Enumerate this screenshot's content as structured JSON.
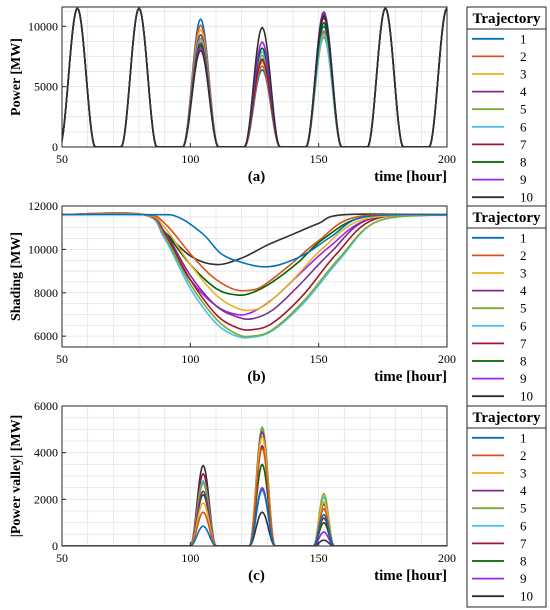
{
  "colors": [
    "#0072BD",
    "#D95319",
    "#EDB120",
    "#7E2F8E",
    "#77AC30",
    "#4DBEEE",
    "#A2142F",
    "#006400",
    "#A020F0",
    "#303030"
  ],
  "chart_data": [
    {
      "type": "line",
      "panel_label": "(a)",
      "xlabel": "time [hour]",
      "ylabel": "Power [MW]",
      "xlim": [
        50,
        200
      ],
      "ylim": [
        0,
        11600
      ],
      "xticks": [
        "50",
        "100",
        "150",
        "200"
      ],
      "xtick_values": [
        50,
        100,
        150,
        200
      ],
      "yticks": [
        "0",
        "5000",
        "10000"
      ],
      "ytick_values": [
        0,
        5000,
        10000
      ],
      "grid": true,
      "legend": {
        "title": "Trajectory",
        "entries": [
          "1",
          "2",
          "3",
          "4",
          "5",
          "6",
          "7",
          "8",
          "9",
          "10"
        ],
        "placement": "right"
      },
      "common_peak": 11500,
      "day_peaks": [
        {
          "center": 56,
          "values": [
            11500,
            11500,
            11500,
            11500,
            11500,
            11500,
            11500,
            11500,
            11500,
            11500
          ]
        },
        {
          "center": 80,
          "values": [
            11500,
            11500,
            11500,
            11500,
            11500,
            11500,
            11500,
            11500,
            11500,
            11500
          ]
        },
        {
          "center": 104,
          "values": [
            10600,
            10100,
            9700,
            9300,
            9000,
            8800,
            8600,
            8400,
            8200,
            8000
          ]
        },
        {
          "center": 128,
          "values": [
            6400,
            6700,
            7000,
            7300,
            7600,
            7900,
            7200,
            8200,
            8700,
            9900
          ]
        },
        {
          "center": 152,
          "values": [
            10000,
            9600,
            9300,
            11200,
            9100,
            9400,
            10700,
            10300,
            11000,
            10900
          ]
        },
        {
          "center": 176,
          "values": [
            11500,
            11500,
            11500,
            11500,
            11500,
            11500,
            11500,
            11500,
            11500,
            11500
          ]
        },
        {
          "center": 200,
          "values": [
            11500,
            11500,
            11500,
            11500,
            11500,
            11500,
            11500,
            11500,
            11500,
            11500
          ]
        }
      ],
      "half_width_hours": 7
    },
    {
      "type": "line",
      "panel_label": "(b)",
      "xlabel": "time [hour]",
      "ylabel": "Shading [MW]",
      "xlim": [
        50,
        200
      ],
      "ylim": [
        5500,
        12000
      ],
      "xticks": [
        "50",
        "100",
        "150",
        "200"
      ],
      "xtick_values": [
        50,
        100,
        150,
        200
      ],
      "yticks": [
        "6000",
        "8000",
        "10000",
        "12000"
      ],
      "ytick_values": [
        6000,
        8000,
        10000,
        12000
      ],
      "grid": true,
      "legend": {
        "title": "Trajectory",
        "entries": [
          "1",
          "2",
          "3",
          "4",
          "5",
          "6",
          "7",
          "8",
          "9",
          "10"
        ],
        "placement": "right"
      },
      "baseline": 11600,
      "series": [
        {
          "name": "1",
          "x": [
            50,
            85,
            95,
            105,
            112,
            120,
            128,
            135,
            145,
            155,
            168,
            200
          ],
          "y": [
            11600,
            11600,
            11500,
            10700,
            9800,
            9400,
            9200,
            9300,
            9800,
            10600,
            11500,
            11600
          ]
        },
        {
          "name": "2",
          "x": [
            50,
            82,
            90,
            100,
            108,
            116,
            122,
            128,
            138,
            150,
            165,
            200
          ],
          "y": [
            11600,
            11600,
            11200,
            9800,
            8800,
            8200,
            8100,
            8300,
            9200,
            10400,
            11500,
            11600
          ]
        },
        {
          "name": "3",
          "x": [
            50,
            82,
            90,
            100,
            110,
            118,
            124,
            130,
            140,
            152,
            168,
            200
          ],
          "y": [
            11600,
            11600,
            11000,
            9300,
            7900,
            7300,
            7200,
            7500,
            8600,
            10100,
            11400,
            11600
          ]
        },
        {
          "name": "4",
          "x": [
            50,
            82,
            90,
            100,
            110,
            118,
            124,
            132,
            142,
            155,
            170,
            200
          ],
          "y": [
            11600,
            11600,
            10800,
            8800,
            7400,
            6900,
            6800,
            7200,
            8300,
            9900,
            11400,
            11600
          ]
        },
        {
          "name": "5",
          "x": [
            50,
            82,
            90,
            100,
            110,
            118,
            124,
            132,
            144,
            158,
            173,
            200
          ],
          "y": [
            11600,
            11600,
            10600,
            8400,
            6800,
            6100,
            6000,
            6300,
            7600,
            9600,
            11300,
            11600
          ]
        },
        {
          "name": "6",
          "x": [
            50,
            82,
            90,
            100,
            110,
            118,
            124,
            132,
            144,
            158,
            173,
            200
          ],
          "y": [
            11600,
            11600,
            10500,
            8200,
            6600,
            6000,
            5950,
            6250,
            7500,
            9500,
            11300,
            11600
          ]
        },
        {
          "name": "7",
          "x": [
            50,
            82,
            90,
            100,
            110,
            118,
            124,
            132,
            144,
            157,
            172,
            200
          ],
          "y": [
            11600,
            11600,
            10700,
            8600,
            7000,
            6400,
            6300,
            6600,
            7900,
            9800,
            11400,
            11600
          ]
        },
        {
          "name": "8",
          "x": [
            50,
            82,
            90,
            100,
            110,
            118,
            124,
            132,
            142,
            152,
            168,
            200
          ],
          "y": [
            11600,
            11600,
            10800,
            9300,
            8200,
            7900,
            8000,
            8500,
            9400,
            10500,
            11500,
            11600
          ]
        },
        {
          "name": "9",
          "x": [
            50,
            82,
            90,
            100,
            110,
            118,
            124,
            132,
            142,
            154,
            170,
            200
          ],
          "y": [
            11600,
            11600,
            10500,
            8600,
            7400,
            7000,
            7100,
            7700,
            8800,
            10100,
            11400,
            11600
          ]
        },
        {
          "name": "10",
          "x": [
            50,
            82,
            90,
            100,
            110,
            120,
            130,
            140,
            150,
            160,
            200
          ],
          "y": [
            11600,
            11600,
            10800,
            9700,
            9300,
            9600,
            10200,
            10700,
            11200,
            11600,
            11600
          ]
        }
      ]
    },
    {
      "type": "line",
      "panel_label": "(c)",
      "xlabel": "time [hour]",
      "ylabel": "|Power valley| [MW]",
      "xlim": [
        50,
        200
      ],
      "ylim": [
        0,
        6000
      ],
      "xticks": [
        "50",
        "100",
        "150",
        "200"
      ],
      "xtick_values": [
        50,
        100,
        150,
        200
      ],
      "yticks": [
        "0",
        "2000",
        "4000",
        "6000"
      ],
      "ytick_values": [
        0,
        2000,
        4000,
        6000
      ],
      "grid": true,
      "legend": {
        "title": "Trajectory",
        "entries": [
          "1",
          "2",
          "3",
          "4",
          "5",
          "6",
          "7",
          "8",
          "9",
          "10"
        ],
        "placement": "right"
      },
      "bumps": [
        {
          "center": 105,
          "half_width_hours": 5,
          "values": [
            850,
            1450,
            1850,
            2350,
            2700,
            2800,
            3100,
            2200,
            2700,
            3450
          ]
        },
        {
          "center": 128,
          "half_width_hours": 5,
          "values": [
            2400,
            4200,
            4700,
            4900,
            5100,
            5000,
            4300,
            3500,
            2500,
            1450
          ]
        },
        {
          "center": 152,
          "half_width_hours": 4,
          "values": [
            1350,
            1600,
            1900,
            1800,
            2250,
            2100,
            1200,
            1000,
            600,
            250
          ]
        }
      ]
    }
  ]
}
